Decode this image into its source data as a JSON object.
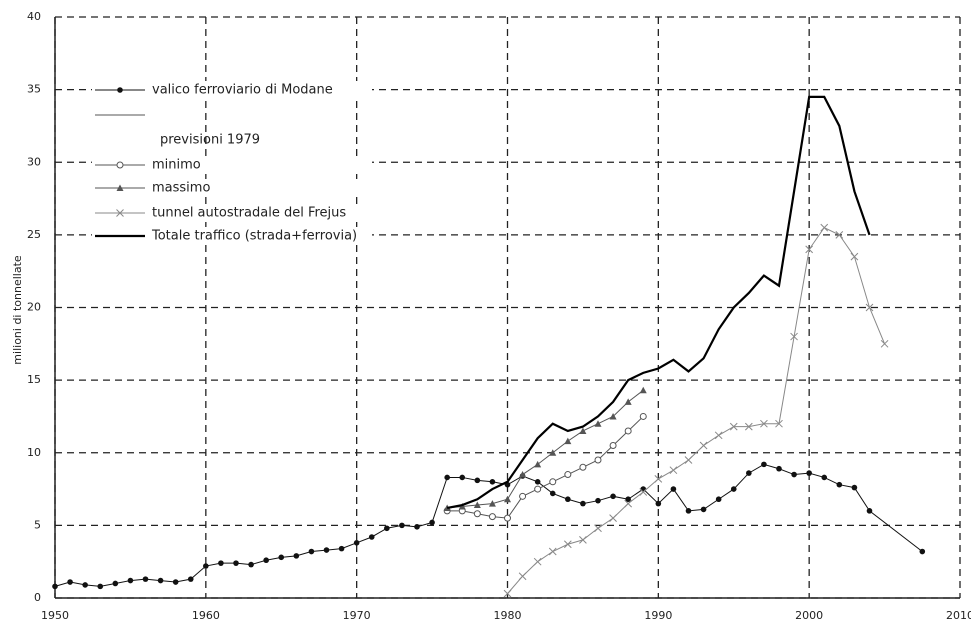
{
  "chart_data": {
    "type": "line",
    "y_label": "milioni di tonnellate",
    "annotation": "previsioni 1979",
    "xlim": [
      1950,
      2010
    ],
    "xticks": [
      1950,
      1960,
      1970,
      1980,
      1990,
      2000,
      2010
    ],
    "ylim": [
      0,
      40
    ],
    "yticks": [
      0,
      5,
      10,
      15,
      20,
      25,
      30,
      35,
      40
    ],
    "grid": true,
    "legend": "upper left",
    "series": [
      {
        "name": "valico ferroviario di Modane",
        "color": "#111111",
        "marker": "dot",
        "width": 1,
        "x": [
          1950,
          1951,
          1952,
          1953,
          1954,
          1955,
          1956,
          1957,
          1958,
          1959,
          1960,
          1961,
          1962,
          1963,
          1964,
          1965,
          1966,
          1967,
          1968,
          1969,
          1970,
          1971,
          1972,
          1973,
          1974,
          1975,
          1976,
          1977,
          1978,
          1979,
          1980,
          1981,
          1982,
          1983,
          1984,
          1985,
          1986,
          1987,
          1988,
          1989,
          1990,
          1991,
          1992,
          1993,
          1994,
          1995,
          1996,
          1997,
          1998,
          1999,
          2000,
          2001,
          2002,
          2003,
          2004,
          2007.5
        ],
        "values": [
          0.8,
          1.1,
          0.9,
          0.8,
          1.0,
          1.2,
          1.3,
          1.2,
          1.1,
          1.3,
          2.2,
          2.4,
          2.4,
          2.3,
          2.6,
          2.8,
          2.9,
          3.2,
          3.3,
          3.4,
          3.8,
          4.2,
          4.8,
          5.0,
          4.9,
          5.2,
          8.3,
          8.3,
          8.1,
          8.0,
          7.8,
          8.4,
          8.0,
          7.2,
          6.8,
          6.5,
          6.7,
          7.0,
          6.8,
          7.5,
          6.5,
          7.5,
          6.0,
          6.1,
          6.8,
          7.5,
          8.6,
          9.2,
          8.9,
          8.5,
          8.6,
          8.3,
          7.8,
          7.6,
          6.0,
          3.2
        ]
      },
      {
        "name": "minimo",
        "color": "#555555",
        "marker": "circle",
        "width": 1,
        "x": [
          1976,
          1977,
          1978,
          1979,
          1980,
          1981,
          1982,
          1983,
          1984,
          1985,
          1986,
          1987,
          1988,
          1989
        ],
        "values": [
          6.0,
          6.0,
          5.8,
          5.6,
          5.5,
          7.0,
          7.5,
          8.0,
          8.5,
          9.0,
          9.5,
          10.5,
          11.5,
          12.5
        ]
      },
      {
        "name": "massimo",
        "color": "#555555",
        "marker": "triangle",
        "width": 1,
        "x": [
          1976,
          1977,
          1978,
          1979,
          1980,
          1981,
          1982,
          1983,
          1984,
          1985,
          1986,
          1987,
          1988,
          1989
        ],
        "values": [
          6.2,
          6.3,
          6.4,
          6.5,
          6.8,
          8.5,
          9.2,
          10.0,
          10.8,
          11.5,
          12.0,
          12.5,
          13.5,
          14.3
        ]
      },
      {
        "name": "tunnel autostradale del Frejus",
        "color": "#888888",
        "marker": "x",
        "width": 1,
        "x": [
          1980,
          1981,
          1982,
          1983,
          1984,
          1985,
          1986,
          1987,
          1988,
          1989,
          1990,
          1991,
          1992,
          1993,
          1994,
          1995,
          1996,
          1997,
          1998,
          1999,
          2000,
          2001,
          2002,
          2003,
          2004,
          2005
        ],
        "values": [
          0.3,
          1.5,
          2.5,
          3.2,
          3.7,
          4.0,
          4.8,
          5.5,
          6.5,
          7.3,
          8.2,
          8.8,
          9.5,
          10.5,
          11.2,
          11.8,
          11.8,
          12.0,
          12.0,
          18.0,
          24.0,
          25.5,
          25.0,
          23.5,
          20.0,
          17.5
        ]
      },
      {
        "name": "Totale traffico (strada+ferrovia)",
        "color": "#000000",
        "marker": "none",
        "width": 2.2,
        "x": [
          1976,
          1977,
          1978,
          1979,
          1980,
          1981,
          1982,
          1983,
          1984,
          1985,
          1986,
          1987,
          1988,
          1989,
          1990,
          1991,
          1992,
          1993,
          1994,
          1995,
          1996,
          1997,
          1998,
          1999,
          2000,
          2001,
          2002,
          2003,
          2004
        ],
        "values": [
          6.2,
          6.4,
          6.8,
          7.5,
          8.0,
          9.5,
          11.0,
          12.0,
          11.5,
          11.8,
          12.5,
          13.5,
          15.0,
          15.5,
          15.8,
          16.4,
          15.6,
          16.5,
          18.5,
          20.0,
          21.0,
          22.2,
          21.5,
          28.0,
          34.5,
          34.5,
          32.5,
          28.0,
          25.0
        ]
      }
    ]
  }
}
